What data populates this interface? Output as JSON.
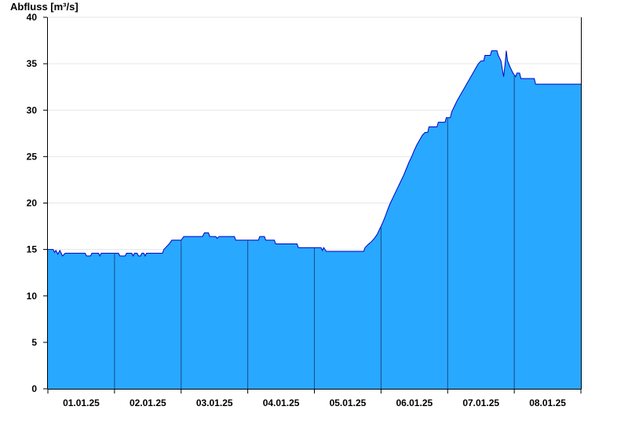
{
  "chart_data": {
    "type": "area",
    "ylabel": "Abfluss [m³/s]",
    "ylim": [
      0,
      40
    ],
    "yticks": [
      0,
      5,
      10,
      15,
      20,
      25,
      30,
      35,
      40
    ],
    "xlim": [
      0,
      8
    ],
    "day_boundaries": [
      1,
      2,
      3,
      4,
      5,
      6,
      7
    ],
    "xticks": [
      {
        "x": 0.5,
        "label": "01.01.25"
      },
      {
        "x": 1.5,
        "label": "02.01.25"
      },
      {
        "x": 2.5,
        "label": "03.01.25"
      },
      {
        "x": 3.5,
        "label": "04.01.25"
      },
      {
        "x": 4.5,
        "label": "05.01.25"
      },
      {
        "x": 5.5,
        "label": "06.01.25"
      },
      {
        "x": 6.5,
        "label": "07.01.25"
      },
      {
        "x": 7.5,
        "label": "08.01.25"
      }
    ],
    "grid": true,
    "colors": {
      "fill": "#29a8ff",
      "line": "#0000c8",
      "grid": "#e6e6e6",
      "axis": "#000000",
      "divider": "#1a4a8a"
    },
    "series": [
      {
        "points": [
          [
            0.0,
            15.0
          ],
          [
            0.08,
            15.0
          ],
          [
            0.1,
            14.7
          ],
          [
            0.12,
            14.9
          ],
          [
            0.15,
            14.5
          ],
          [
            0.18,
            14.9
          ],
          [
            0.22,
            14.3
          ],
          [
            0.26,
            14.6
          ],
          [
            0.3,
            14.6
          ],
          [
            0.35,
            14.6
          ],
          [
            0.56,
            14.6
          ],
          [
            0.58,
            14.3
          ],
          [
            0.64,
            14.3
          ],
          [
            0.66,
            14.6
          ],
          [
            0.76,
            14.6
          ],
          [
            0.78,
            14.3
          ],
          [
            0.8,
            14.6
          ],
          [
            1.06,
            14.6
          ],
          [
            1.08,
            14.3
          ],
          [
            1.16,
            14.3
          ],
          [
            1.18,
            14.6
          ],
          [
            1.26,
            14.6
          ],
          [
            1.28,
            14.3
          ],
          [
            1.3,
            14.6
          ],
          [
            1.34,
            14.6
          ],
          [
            1.36,
            14.3
          ],
          [
            1.39,
            14.3
          ],
          [
            1.41,
            14.6
          ],
          [
            1.44,
            14.6
          ],
          [
            1.46,
            14.3
          ],
          [
            1.48,
            14.6
          ],
          [
            1.72,
            14.6
          ],
          [
            1.74,
            15.0
          ],
          [
            1.78,
            15.3
          ],
          [
            1.82,
            15.6
          ],
          [
            1.86,
            16.0
          ],
          [
            2.0,
            16.0
          ],
          [
            2.04,
            16.4
          ],
          [
            2.32,
            16.4
          ],
          [
            2.35,
            16.8
          ],
          [
            2.41,
            16.8
          ],
          [
            2.43,
            16.4
          ],
          [
            2.52,
            16.4
          ],
          [
            2.54,
            16.2
          ],
          [
            2.57,
            16.4
          ],
          [
            2.8,
            16.4
          ],
          [
            2.82,
            16.0
          ],
          [
            3.16,
            16.0
          ],
          [
            3.18,
            16.4
          ],
          [
            3.25,
            16.4
          ],
          [
            3.27,
            16.0
          ],
          [
            3.4,
            16.0
          ],
          [
            3.42,
            15.6
          ],
          [
            3.74,
            15.6
          ],
          [
            3.76,
            15.2
          ],
          [
            4.1,
            15.2
          ],
          [
            4.12,
            14.9
          ],
          [
            4.14,
            15.2
          ],
          [
            4.16,
            15.0
          ],
          [
            4.18,
            14.8
          ],
          [
            4.74,
            14.8
          ],
          [
            4.76,
            15.2
          ],
          [
            4.8,
            15.5
          ],
          [
            4.85,
            15.8
          ],
          [
            4.9,
            16.2
          ],
          [
            4.94,
            16.6
          ],
          [
            4.98,
            17.2
          ],
          [
            5.02,
            17.8
          ],
          [
            5.06,
            18.5
          ],
          [
            5.1,
            19.3
          ],
          [
            5.14,
            20.0
          ],
          [
            5.18,
            20.6
          ],
          [
            5.22,
            21.2
          ],
          [
            5.26,
            21.8
          ],
          [
            5.3,
            22.4
          ],
          [
            5.34,
            23.0
          ],
          [
            5.38,
            23.7
          ],
          [
            5.42,
            24.4
          ],
          [
            5.46,
            25.0
          ],
          [
            5.5,
            25.7
          ],
          [
            5.54,
            26.3
          ],
          [
            5.58,
            26.8
          ],
          [
            5.62,
            27.3
          ],
          [
            5.66,
            27.6
          ],
          [
            5.7,
            27.6
          ],
          [
            5.72,
            28.2
          ],
          [
            5.84,
            28.2
          ],
          [
            5.86,
            28.7
          ],
          [
            5.96,
            28.7
          ],
          [
            5.98,
            29.2
          ],
          [
            6.04,
            29.2
          ],
          [
            6.06,
            29.8
          ],
          [
            6.1,
            30.4
          ],
          [
            6.14,
            31.0
          ],
          [
            6.18,
            31.5
          ],
          [
            6.22,
            32.0
          ],
          [
            6.26,
            32.5
          ],
          [
            6.3,
            33.0
          ],
          [
            6.34,
            33.5
          ],
          [
            6.38,
            34.0
          ],
          [
            6.42,
            34.5
          ],
          [
            6.46,
            35.0
          ],
          [
            6.5,
            35.3
          ],
          [
            6.54,
            35.3
          ],
          [
            6.56,
            35.9
          ],
          [
            6.64,
            35.9
          ],
          [
            6.66,
            36.4
          ],
          [
            6.74,
            36.4
          ],
          [
            6.76,
            35.9
          ],
          [
            6.8,
            35.3
          ],
          [
            6.84,
            33.6
          ],
          [
            6.86,
            34.8
          ],
          [
            6.88,
            36.4
          ],
          [
            6.9,
            35.3
          ],
          [
            6.94,
            34.6
          ],
          [
            6.98,
            34.0
          ],
          [
            7.02,
            33.6
          ],
          [
            7.04,
            34.0
          ],
          [
            7.08,
            34.0
          ],
          [
            7.1,
            33.4
          ],
          [
            7.3,
            33.4
          ],
          [
            7.32,
            32.8
          ],
          [
            7.45,
            32.8
          ],
          [
            8.0,
            32.8
          ]
        ]
      }
    ]
  }
}
